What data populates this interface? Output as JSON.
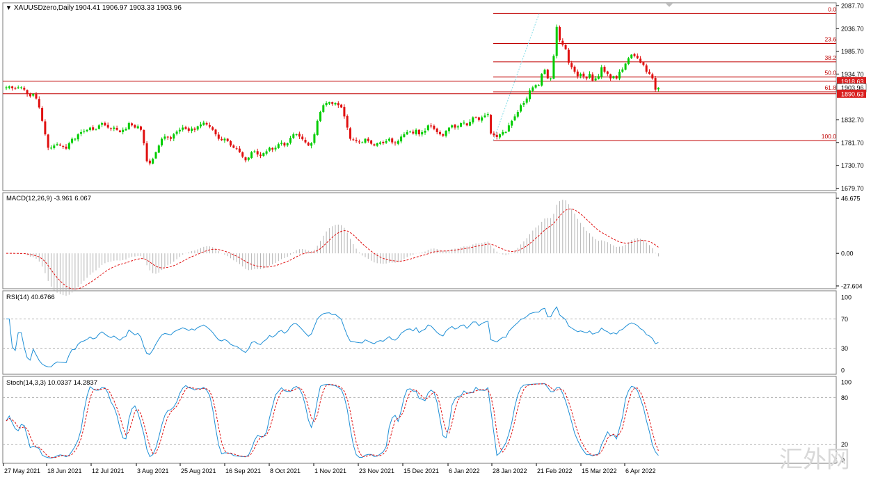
{
  "chart_data": [
    {
      "type": "candlestick",
      "symbol_label": "XAUUSDzero,Daily",
      "ohlc_label": "1904.41 1906.97 1903.33 1903.96",
      "ylim": [
        1679.7,
        2087.7
      ],
      "y_ticks": [
        "2087.70",
        "2036.70",
        "1985.70",
        "1934.70",
        "1832.70",
        "1781.70",
        "1730.70",
        "1679.70"
      ],
      "price_tags": [
        {
          "value": 1918.63,
          "label": "1918.63",
          "bg": "#d91f1f"
        },
        {
          "value": 1903.96,
          "label": "1903.96",
          "bg": "#ffffff"
        },
        {
          "value": 1890.63,
          "label": "1890.63",
          "bg": "#d91f1f"
        }
      ],
      "fibonacci_levels": [
        {
          "label": "0.0",
          "price": 2070
        },
        {
          "label": "23.6",
          "price": 2003
        },
        {
          "label": "38.2",
          "price": 1962
        },
        {
          "label": "50.0",
          "price": 1928
        },
        {
          "label": "61.8",
          "price": 1895
        },
        {
          "label": "100.0",
          "price": 1786
        }
      ],
      "horizontal_lines": [
        1918.63,
        1890.63
      ],
      "closes": [
        1905,
        1907,
        1903,
        1902,
        1905,
        1905,
        1900,
        1890,
        1885,
        1890,
        1880,
        1860,
        1830,
        1800,
        1770,
        1770,
        1775,
        1778,
        1775,
        1772,
        1768,
        1780,
        1790,
        1790,
        1800,
        1805,
        1807,
        1810,
        1815,
        1810,
        1812,
        1820,
        1825,
        1820,
        1815,
        1812,
        1815,
        1810,
        1805,
        1810,
        1812,
        1825,
        1820,
        1815,
        1818,
        1810,
        1780,
        1740,
        1735,
        1745,
        1760,
        1775,
        1790,
        1795,
        1793,
        1790,
        1800,
        1806,
        1810,
        1815,
        1812,
        1808,
        1813,
        1810,
        1818,
        1822,
        1826,
        1822,
        1817,
        1810,
        1800,
        1790,
        1787,
        1790,
        1785,
        1775,
        1770,
        1768,
        1760,
        1750,
        1742,
        1748,
        1760,
        1762,
        1755,
        1752,
        1758,
        1762,
        1770,
        1766,
        1770,
        1778,
        1781,
        1775,
        1780,
        1792,
        1800,
        1800,
        1795,
        1789,
        1782,
        1775,
        1780,
        1800,
        1830,
        1850,
        1865,
        1870,
        1872,
        1868,
        1870,
        1865,
        1860,
        1840,
        1815,
        1790,
        1788,
        1785,
        1783,
        1782,
        1790,
        1785,
        1779,
        1775,
        1780,
        1782,
        1780,
        1785,
        1790,
        1782,
        1780,
        1785,
        1795,
        1800,
        1805,
        1806,
        1802,
        1810,
        1800,
        1805,
        1808,
        1820,
        1818,
        1812,
        1805,
        1800,
        1797,
        1808,
        1815,
        1820,
        1815,
        1818,
        1825,
        1826,
        1820,
        1828,
        1838,
        1838,
        1832,
        1838,
        1842,
        1845,
        1802,
        1798,
        1794,
        1800,
        1805,
        1805,
        1820,
        1830,
        1840,
        1850,
        1865,
        1870,
        1880,
        1898,
        1905,
        1910,
        1910,
        1935,
        1944,
        1925,
        1925,
        1975,
        2040,
        2010,
        2000,
        1990,
        1960,
        1950,
        1940,
        1930,
        1935,
        1930,
        1925,
        1935,
        1920,
        1925,
        1930,
        1950,
        1940,
        1935,
        1925,
        1930,
        1925,
        1940,
        1945,
        1958,
        1970,
        1978,
        1975,
        1970,
        1960,
        1955,
        1940,
        1935,
        1925,
        1900,
        1904
      ]
    },
    {
      "type": "line",
      "indicator_label": "MACD(12,26,9) -3.961 6.067",
      "ylim": [
        -27.604,
        46.675
      ],
      "y_ticks": [
        "46.675",
        "0.00",
        "-27.604"
      ],
      "series": []
    },
    {
      "type": "line",
      "indicator_label": "RSI(14) 40.6766",
      "ylim": [
        0,
        100
      ],
      "y_ticks": [
        "100",
        "70",
        "30",
        "0"
      ],
      "levels": [
        70,
        30
      ],
      "series": []
    },
    {
      "type": "line",
      "indicator_label": "Stoch(14,3,3) 10.0337 14.2837",
      "ylim": [
        0,
        100
      ],
      "y_ticks": [
        "100",
        "80",
        "20",
        "0"
      ],
      "levels": [
        80,
        20
      ],
      "series": []
    }
  ],
  "x_axis_labels": [
    "27 May 2021",
    "18 Jun 2021",
    "12 Jul 2021",
    "3 Aug 2021",
    "25 Aug 2021",
    "16 Sep 2021",
    "8 Oct 2021",
    "1 Nov 2021",
    "23 Nov 2021",
    "15 Dec 2021",
    "6 Jan 2022",
    "28 Jan 2022",
    "21 Feb 2022",
    "15 Mar 2022",
    "6 Apr 2022"
  ],
  "watermark": "汇外网",
  "colors": {
    "up": "#00cc00",
    "down": "#e01010",
    "fib": "#c00000",
    "macd_hist": "#b4b4b4",
    "signal": "#e01010",
    "rsi": "#1e8fd6",
    "stoch_main": "#1e8fd6",
    "stoch_signal": "#e01010"
  }
}
